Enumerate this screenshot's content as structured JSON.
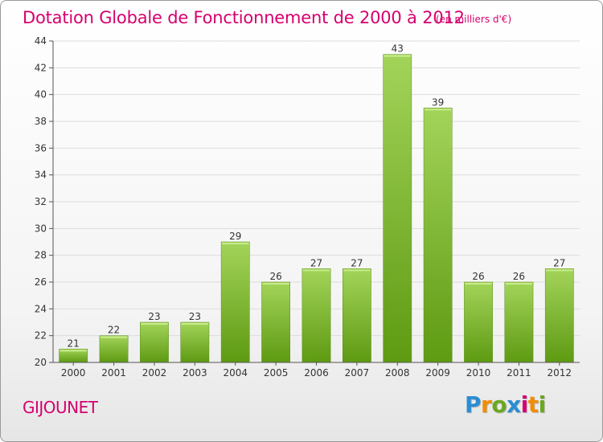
{
  "title": "Dotation Globale de Fonctionnement de 2000 à 2012",
  "subtitle": "(en milliers d'€)",
  "commune": "GIJOUNET",
  "logo": {
    "letters": [
      "P",
      "r",
      "o",
      "x",
      "i",
      "t",
      "i"
    ],
    "colors": [
      "#2a8dd4",
      "#f28c00",
      "#6aa820",
      "#2a8dd4",
      "#d6006e",
      "#f28c00",
      "#6aa820"
    ]
  },
  "colors": {
    "bar_light": "#a3d45a",
    "bar_dark": "#5e9a12",
    "accent": "#d6006e"
  },
  "chart_data": {
    "type": "bar",
    "categories": [
      "2000",
      "2001",
      "2002",
      "2003",
      "2004",
      "2005",
      "2006",
      "2007",
      "2008",
      "2009",
      "2010",
      "2011",
      "2012"
    ],
    "values": [
      21,
      22,
      23,
      23,
      29,
      26,
      27,
      27,
      43,
      39,
      26,
      26,
      27
    ],
    "ylim": [
      20,
      44
    ],
    "yticks": [
      20,
      22,
      24,
      26,
      28,
      30,
      32,
      34,
      36,
      38,
      40,
      42,
      44
    ],
    "grid": true,
    "legend": "none"
  }
}
